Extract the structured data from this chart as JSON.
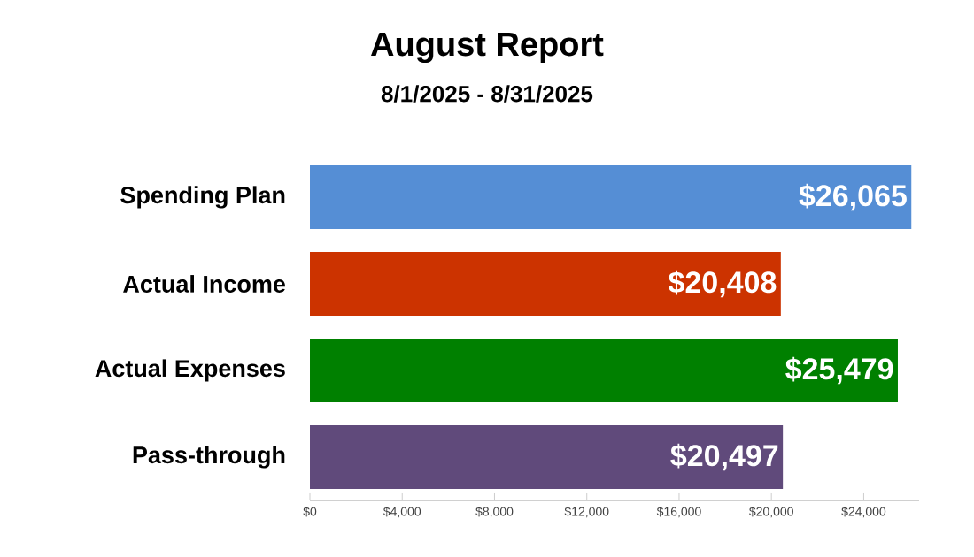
{
  "chart_data": {
    "type": "bar",
    "orientation": "horizontal",
    "title": "August Report",
    "subtitle": "8/1/2025 - 8/31/2025",
    "categories": [
      "Spending Plan",
      "Actual Income",
      "Actual Expenses",
      "Pass-through"
    ],
    "values": [
      26065,
      20408,
      25479,
      20497
    ],
    "colors": [
      "#558ed5",
      "#cc3300",
      "#008000",
      "#604a7b"
    ],
    "value_labels": [
      "$26,065",
      "$20,408",
      "$25,479",
      "$20,497"
    ],
    "xlim": [
      0,
      26400
    ],
    "xticks": [
      {
        "value": 0,
        "label": "$0"
      },
      {
        "value": 4000,
        "label": "$4,000"
      },
      {
        "value": 8000,
        "label": "$8,000"
      },
      {
        "value": 12000,
        "label": "$12,000"
      },
      {
        "value": 16000,
        "label": "$16,000"
      },
      {
        "value": 20000,
        "label": "$20,000"
      },
      {
        "value": 24000,
        "label": "$24,000"
      }
    ]
  }
}
